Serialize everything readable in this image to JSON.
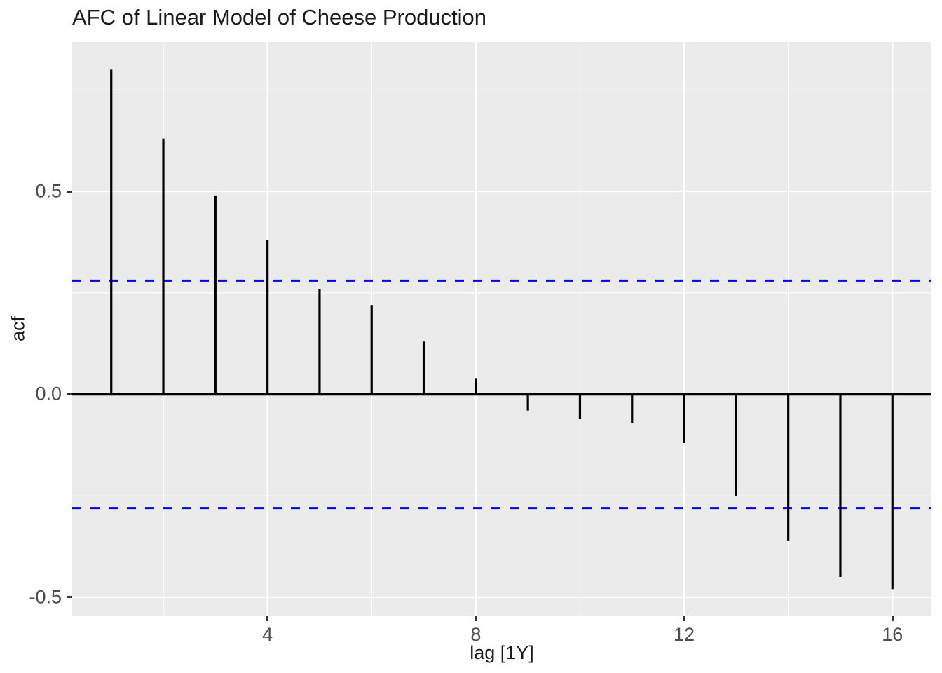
{
  "title": "AFC of Linear Model of Cheese Production",
  "chart_data": {
    "type": "bar",
    "subtype": "acf-lollipop",
    "title": "AFC of Linear Model of Cheese Production",
    "xlabel": "lag [1Y]",
    "ylabel": "acf",
    "x": [
      1,
      2,
      3,
      4,
      5,
      6,
      7,
      8,
      9,
      10,
      11,
      12,
      13,
      14,
      15,
      16
    ],
    "values": [
      0.8,
      0.63,
      0.49,
      0.38,
      0.26,
      0.22,
      0.13,
      0.04,
      -0.04,
      -0.06,
      -0.07,
      -0.12,
      -0.25,
      -0.36,
      -0.45,
      -0.48
    ],
    "confidence_bounds": {
      "upper": 0.28,
      "lower": -0.28,
      "color": "#0000EE",
      "style": "dashed"
    },
    "zero_line": 0,
    "x_ticks": [
      {
        "value": 4,
        "label": "4"
      },
      {
        "value": 8,
        "label": "8"
      },
      {
        "value": 12,
        "label": "12"
      },
      {
        "value": 16,
        "label": "16"
      }
    ],
    "y_ticks": [
      {
        "value": 0.5,
        "label": "0.5"
      },
      {
        "value": 0.0,
        "label": "0.0"
      },
      {
        "value": -0.5,
        "label": "-0.5"
      }
    ],
    "x_minor_gridlines": [
      2,
      6,
      10,
      14
    ],
    "y_minor_gridlines": [
      0.75,
      0.25,
      -0.25
    ],
    "xlim": [
      0.25,
      16.75
    ],
    "ylim": [
      -0.545,
      0.868
    ],
    "grid": true,
    "legend": "none",
    "colors": {
      "panel_bg": "#EBEBEB",
      "grid": "#FFFFFF",
      "bar": "#000000",
      "zero_line": "#000000",
      "tick": "#333333",
      "tick_label": "#4D4D4D",
      "text": "#1A1A1A"
    }
  }
}
